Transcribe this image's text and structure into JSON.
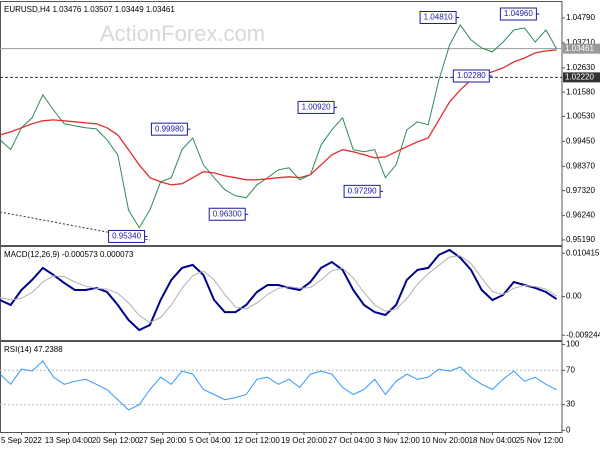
{
  "chart_data": [
    {
      "type": "line",
      "title": "EURUSD,H4 1.03476 1.03507 1.03449 1.03461",
      "watermark": "ActionForex.com",
      "x": [
        0,
        10,
        20,
        30,
        40,
        50,
        60,
        70,
        80,
        90,
        100,
        110,
        120,
        130,
        140,
        150,
        160,
        170,
        180,
        190,
        200,
        210,
        220,
        230,
        240,
        250,
        260,
        270,
        280,
        290,
        300,
        310,
        320,
        330,
        340,
        350,
        360,
        370,
        380,
        390,
        400,
        410,
        420,
        430,
        440,
        450,
        460,
        470,
        480,
        490,
        500,
        510,
        520
      ],
      "xlim": [
        0,
        525
      ],
      "series": [
        {
          "color": "#2e8b57",
          "width": 1,
          "values": [
            0.9952,
            0.9909,
            1.0004,
            1.0047,
            1.0146,
            1.0081,
            1.0021,
            1.0012,
            1.0004,
            0.9999,
            0.9952,
            0.9887,
            0.9649,
            0.9572,
            0.9649,
            0.977,
            0.9788,
            0.9909,
            0.996,
            0.9844,
            0.9788,
            0.9736,
            0.971,
            0.9701,
            0.9757,
            0.9788,
            0.9822,
            0.9831,
            0.9779,
            0.9801,
            0.993,
            0.9995,
            1.0047,
            0.9909,
            0.99,
            0.9909,
            0.9788,
            0.9844,
            0.9995,
            1.003,
            1.0017,
            1.0211,
            1.0362,
            1.0449,
            1.0384,
            1.0349,
            1.0332,
            1.0375,
            1.0427,
            1.0436,
            1.0375,
            1.0427,
            1.0346
          ]
        },
        {
          "color": "#e03030",
          "width": 1.3,
          "values": [
            0.9973,
            0.9986,
            1.0004,
            1.0021,
            1.0034,
            1.0038,
            1.0034,
            1.003,
            1.0025,
            1.0021,
            1.0004,
            0.9973,
            0.9909,
            0.9844,
            0.9788,
            0.977,
            0.9757,
            0.9762,
            0.9788,
            0.9814,
            0.9809,
            0.9796,
            0.9788,
            0.9779,
            0.9779,
            0.9783,
            0.9788,
            0.9792,
            0.9788,
            0.9801,
            0.9844,
            0.9887,
            0.9909,
            0.99,
            0.9887,
            0.9874,
            0.9878,
            0.99,
            0.9922,
            0.9943,
            0.996,
            1.0038,
            1.0116,
            1.0168,
            1.0211,
            1.0233,
            1.0246,
            1.0263,
            1.0289,
            1.0306,
            1.0328,
            1.0336,
            1.0341
          ]
        }
      ],
      "ylim": [
        0.9497,
        1.0548
      ],
      "yticks": [
        {
          "value": 1.0479,
          "label": "1.04790"
        },
        {
          "value": 1.0371,
          "label": "1.03710"
        },
        {
          "value": 1.0263,
          "label": "1.02630"
        },
        {
          "value": 1.0158,
          "label": "1.01580"
        },
        {
          "value": 1.0053,
          "label": "1.00530"
        },
        {
          "value": 0.9945,
          "label": "0.99450"
        },
        {
          "value": 0.9837,
          "label": "0.98370"
        },
        {
          "value": 0.9732,
          "label": "0.97320"
        },
        {
          "value": 0.9624,
          "label": "0.96240"
        },
        {
          "value": 0.9519,
          "label": "0.95190"
        }
      ],
      "hlines": [
        {
          "value": 1.03461,
          "label": "1.03461",
          "color": "#999999",
          "dashed": false
        },
        {
          "value": 1.0222,
          "label": "1.02220",
          "color": "#333333",
          "dashed": true
        }
      ],
      "annotations": [
        {
          "x": 427,
          "value": 1.0481,
          "label": "1.04810"
        },
        {
          "x": 502,
          "value": 1.0496,
          "label": "1.04960"
        },
        {
          "x": 458,
          "value": 1.0228,
          "label": "1.02280"
        },
        {
          "x": 313,
          "value": 1.0092,
          "label": "1.00920"
        },
        {
          "x": 176,
          "value": 0.9998,
          "label": "0.99980"
        },
        {
          "x": 356,
          "value": 0.9729,
          "label": "0.97290"
        },
        {
          "x": 230,
          "value": 0.963,
          "label": "0.96300"
        },
        {
          "x": 136,
          "value": 0.9534,
          "label": "0.95340"
        }
      ]
    },
    {
      "type": "line",
      "title": "MACD(12,26,9) -0.000573 0.000073",
      "series": [
        {
          "color": "#00008b",
          "width": 2,
          "values": [
            -0.0008,
            -0.002,
            0.0016,
            0.004,
            0.0069,
            0.0052,
            0.0033,
            0.0016,
            0.0016,
            0.0021,
            0.0011,
            -0.002,
            -0.0056,
            -0.008,
            -0.0068,
            -0.0008,
            0.004,
            0.0069,
            0.0076,
            0.0052,
            -0.0008,
            -0.0037,
            -0.0037,
            -0.002,
            0.0011,
            0.0028,
            0.0028,
            0.0021,
            0.0016,
            0.0035,
            0.0069,
            0.0083,
            0.0064,
            0.0016,
            -0.002,
            -0.0037,
            -0.0044,
            -0.002,
            0.004,
            0.0064,
            0.0069,
            0.01,
            0.0112,
            0.0093,
            0.0064,
            0.0016,
            -0.0008,
            0.0004,
            0.0035,
            0.0028,
            0.0021,
            0.0011,
            -0.0006
          ]
        },
        {
          "color": "#b0b0b0",
          "width": 1,
          "values": [
            -0.0002,
            -0.0008,
            -0.0004,
            0.001,
            0.0035,
            0.005,
            0.0048,
            0.0035,
            0.0025,
            0.002,
            0.0018,
            0.0008,
            -0.0015,
            -0.0045,
            -0.0062,
            -0.005,
            -0.002,
            0.002,
            0.005,
            0.0062,
            0.004,
            0.0005,
            -0.0025,
            -0.003,
            -0.0015,
            0.0005,
            0.002,
            0.0024,
            0.002,
            0.0022,
            0.004,
            0.0062,
            0.0068,
            0.0045,
            0.001,
            -0.002,
            -0.0035,
            -0.003,
            -0.0005,
            0.003,
            0.0055,
            0.0075,
            0.0095,
            0.0098,
            0.008,
            0.0045,
            0.0012,
            0.0005,
            0.002,
            0.0027,
            0.0024,
            0.0018,
            0.0001
          ]
        }
      ],
      "ylim": [
        -0.0104,
        0.0119
      ],
      "yticks": [
        0.010415,
        {
          "value": 0,
          "label": "0.00"
        },
        -0.009244
      ]
    },
    {
      "type": "line",
      "title": "RSI(14) 47.2388",
      "series": [
        {
          "color": "#3399ff",
          "width": 1,
          "values": [
            65.5,
            53.6,
            71.4,
            69.0,
            80.9,
            61.9,
            53.6,
            57.1,
            59.5,
            53.6,
            47.6,
            35.7,
            23.8,
            29.8,
            47.6,
            61.9,
            53.6,
            69.0,
            65.5,
            47.6,
            41.7,
            35.7,
            38.1,
            41.7,
            59.5,
            61.9,
            53.6,
            59.5,
            50.0,
            65.5,
            69.0,
            65.5,
            50.0,
            41.7,
            47.6,
            59.5,
            41.7,
            57.1,
            65.5,
            59.5,
            61.9,
            71.4,
            69.0,
            73.8,
            61.9,
            53.6,
            47.6,
            59.5,
            69.0,
            57.1,
            61.9,
            53.6,
            47.2
          ]
        }
      ],
      "ylim": [
        -2,
        103
      ],
      "yticks": [
        100,
        70,
        30,
        0
      ],
      "levels": [
        70,
        30
      ],
      "xticks": [
        {
          "value": 20,
          "label": "5 Sep 2022"
        },
        {
          "value": 64,
          "label": "13 Sep 04:00"
        },
        {
          "value": 108,
          "label": "20 Sep 12:00"
        },
        {
          "value": 152,
          "label": "27 Sep 20:00"
        },
        {
          "value": 196,
          "label": "5 Oct 04:00"
        },
        {
          "value": 240,
          "label": "12 Oct 12:00"
        },
        {
          "value": 284,
          "label": "19 Oct 20:00"
        },
        {
          "value": 328,
          "label": "27 Oct 04:00"
        },
        {
          "value": 372,
          "label": "3 Nov 12:00"
        },
        {
          "value": 416,
          "label": "10 Nov 20:00"
        },
        {
          "value": 460,
          "label": "18 Nov 04:00"
        },
        {
          "value": 504,
          "label": "25 Nov 12:00"
        }
      ]
    }
  ]
}
